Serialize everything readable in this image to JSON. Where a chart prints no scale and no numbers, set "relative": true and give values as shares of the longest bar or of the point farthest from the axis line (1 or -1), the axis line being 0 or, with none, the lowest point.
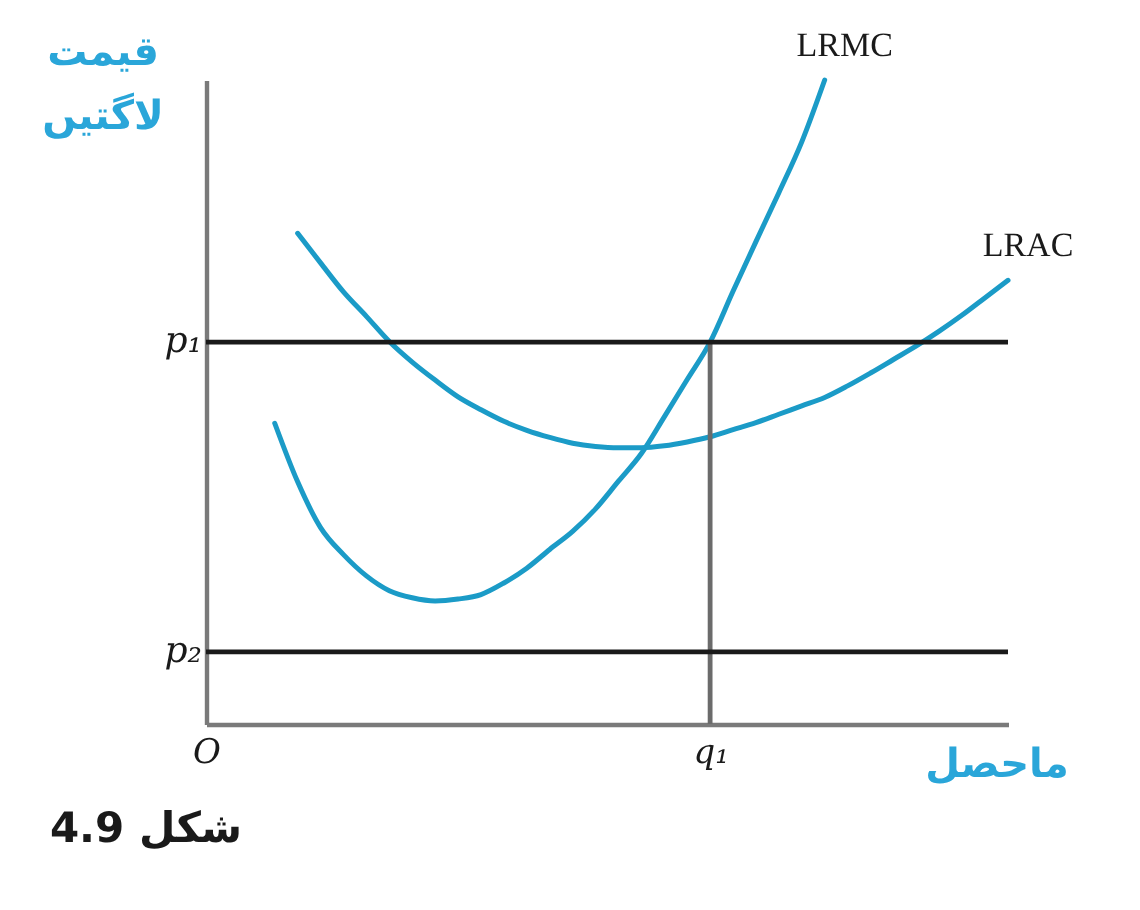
{
  "chart_data": {
    "type": "line",
    "relative": true,
    "ylabel": "قیمت\nلاگتیں",
    "xlabel": "ماحصل",
    "categories": [
      "O",
      null,
      null,
      null,
      null,
      null,
      null,
      null,
      null,
      null,
      null,
      null,
      null,
      null,
      null,
      null,
      null,
      null,
      null,
      null,
      null,
      null,
      "q₁",
      null,
      null,
      null,
      null,
      null,
      null,
      null,
      null,
      null,
      null,
      null,
      null,
      null
    ],
    "series": [
      {
        "name": "LRMC",
        "color": "#1b9bc7",
        "values": [
          null,
          null,
          null,
          0.467,
          0.376,
          0.305,
          0.263,
          0.23,
          0.207,
          0.196,
          0.191,
          0.194,
          0.201,
          0.219,
          0.242,
          0.271,
          0.299,
          0.334,
          0.377,
          0.42,
          0.477,
          0.535,
          0.593,
          0.672,
          0.749,
          0.825,
          0.904,
          1.0,
          null,
          null,
          null,
          null,
          null,
          null,
          null,
          null
        ]
      },
      {
        "name": "LRAC",
        "color": "#1b9bc7",
        "values": [
          null,
          null,
          null,
          null,
          0.762,
          0.716,
          0.671,
          0.633,
          0.594,
          0.562,
          0.534,
          0.508,
          0.488,
          0.47,
          0.456,
          0.445,
          0.436,
          0.431,
          0.429,
          0.429,
          0.432,
          0.438,
          0.446,
          0.457,
          0.468,
          0.481,
          0.494,
          0.507,
          0.525,
          0.545,
          0.566,
          0.587,
          0.61,
          0.635,
          0.662,
          0.689
        ]
      },
      {
        "type": "bar",
        "color": "#6b6b6b",
        "values": [
          null,
          null,
          null,
          null,
          null,
          null,
          null,
          null,
          null,
          null,
          null,
          null,
          null,
          null,
          null,
          null,
          null,
          null,
          null,
          null,
          null,
          null,
          0.593,
          null,
          null,
          null,
          null,
          null,
          null,
          null,
          null,
          null,
          null,
          null,
          null,
          null
        ]
      }
    ],
    "ref_lines": [
      {
        "axis": "y",
        "value": 0.593,
        "label": "p₁",
        "color": "#1a1a1a"
      },
      {
        "axis": "y",
        "value": 0.112,
        "label": "p₂",
        "color": "#1a1a1a"
      }
    ],
    "annotations": [
      "شکل 4.9"
    ]
  }
}
